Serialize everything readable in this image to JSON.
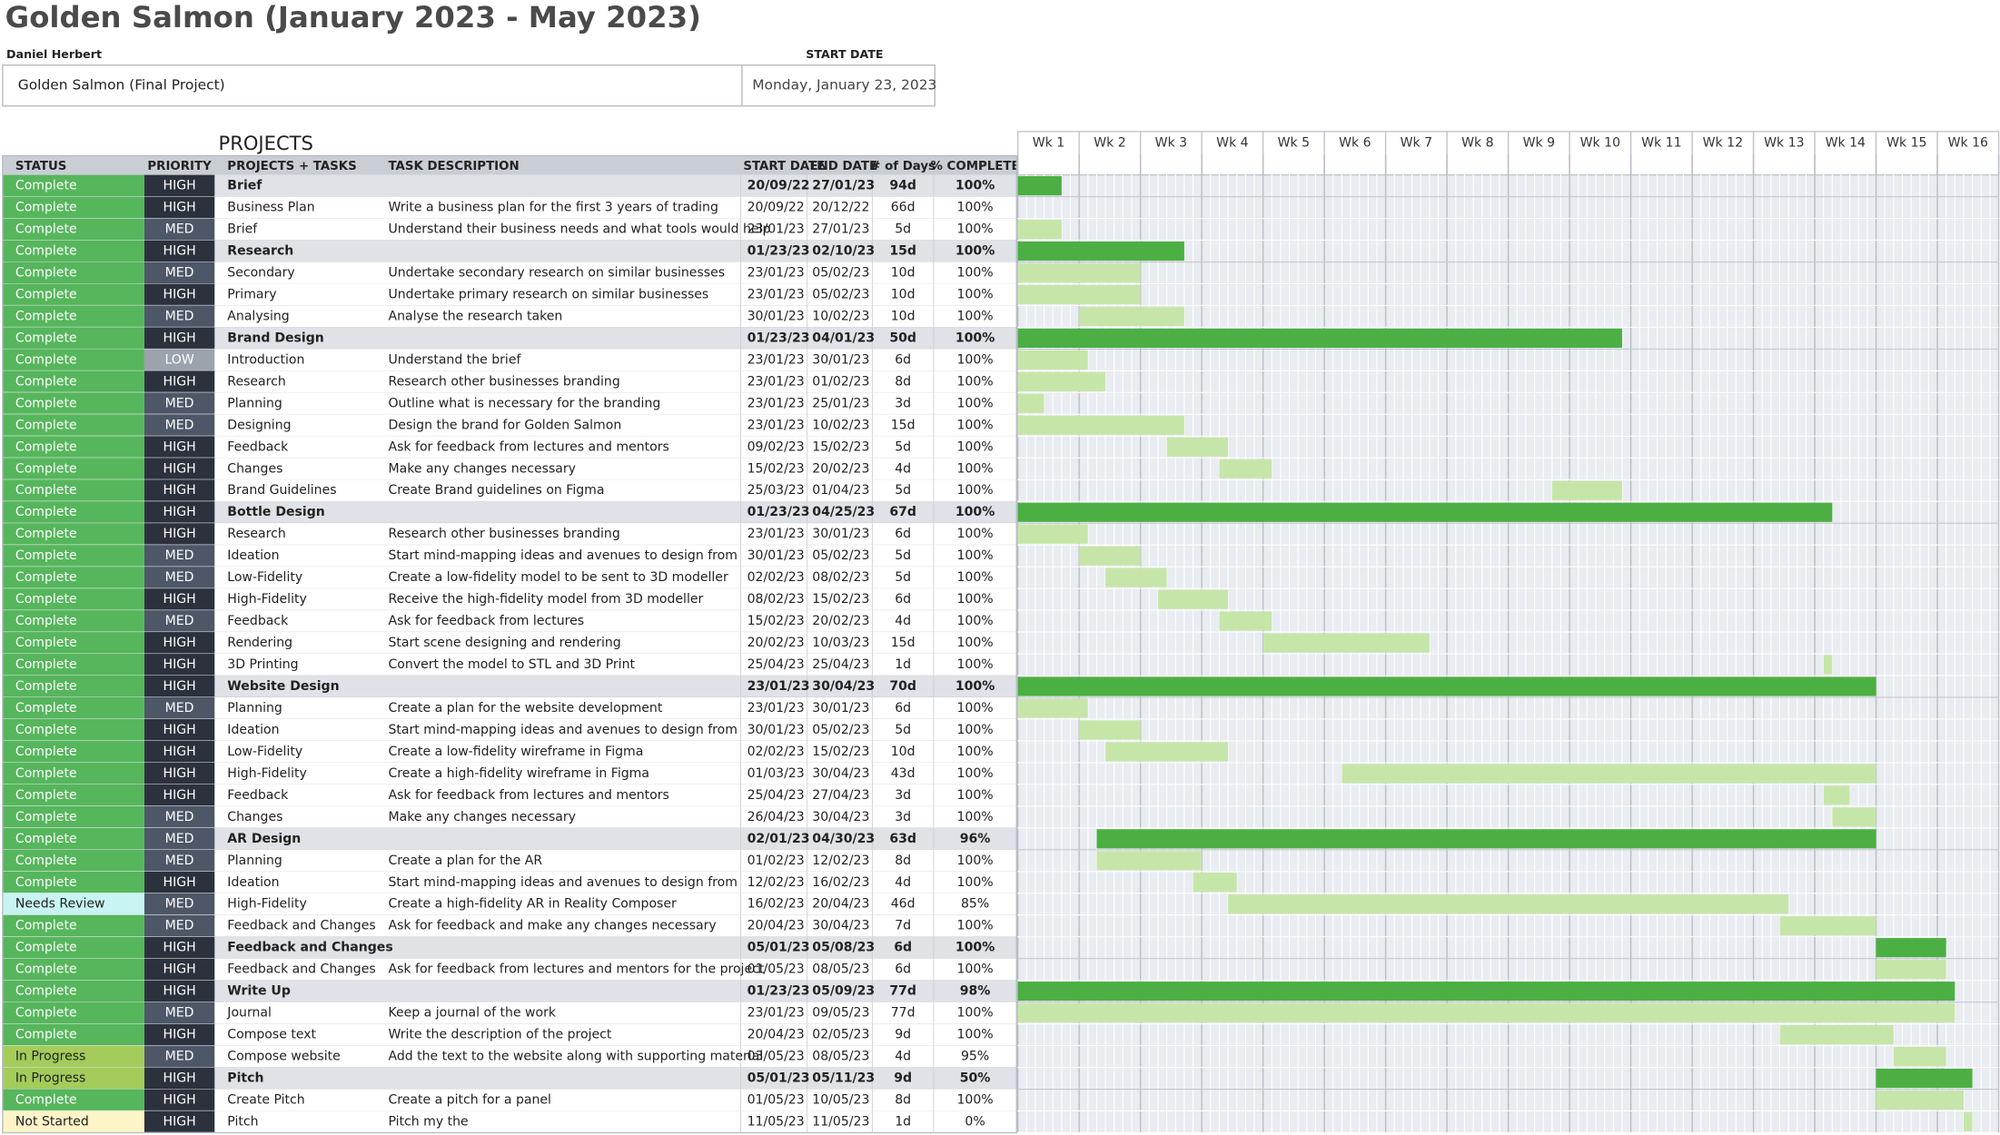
{
  "header": {
    "title": "Golden Salmon (January 2023 - May 2023)",
    "owner": "Daniel Herbert",
    "start_date_label": "START DATE",
    "project_name": "Golden Salmon (Final Project)",
    "start_date": "Monday, January 23, 2023"
  },
  "table": {
    "section_label": "PROJECTS",
    "columns": [
      "STATUS",
      "PRIORITY",
      "PROJECTS + TASKS",
      "TASK DESCRIPTION",
      "START DATE",
      "END DATE",
      "# of Days",
      "% COMPLETE"
    ],
    "weeks": [
      "Wk 1",
      "Wk 2",
      "Wk 3",
      "Wk 4",
      "Wk 5",
      "Wk 6",
      "Wk 7",
      "Wk 8",
      "Wk 9",
      "Wk 10",
      "Wk 11",
      "Wk 12",
      "Wk 13",
      "Wk 14",
      "Wk 15",
      "Wk 16"
    ],
    "rows": [
      {
        "status": "Complete",
        "priority": "HIGH",
        "task": "Brief",
        "summary": true,
        "start": "20/09/22",
        "end": "27/01/23",
        "days": "94d",
        "complete": "100%"
      },
      {
        "status": "Complete",
        "priority": "HIGH",
        "task": "Business Plan",
        "description": "Write a business plan for the first 3 years of trading",
        "start": "20/09/22",
        "end": "20/12/22",
        "days": "66d",
        "complete": "100%"
      },
      {
        "status": "Complete",
        "priority": "MED",
        "task": "Brief",
        "description": "Understand their business needs and what tools would help",
        "start": "23/01/23",
        "end": "27/01/23",
        "days": "5d",
        "complete": "100%"
      },
      {
        "status": "Complete",
        "priority": "HIGH",
        "task": "Research",
        "summary": true,
        "start": "01/23/23",
        "end": "02/10/23",
        "days": "15d",
        "complete": "100%"
      },
      {
        "status": "Complete",
        "priority": "MED",
        "task": "Secondary",
        "description": "Undertake secondary research on similar businesses",
        "start": "23/01/23",
        "end": "05/02/23",
        "days": "10d",
        "complete": "100%"
      },
      {
        "status": "Complete",
        "priority": "HIGH",
        "task": "Primary",
        "description": "Undertake primary research on similar businesses",
        "start": "23/01/23",
        "end": "05/02/23",
        "days": "10d",
        "complete": "100%"
      },
      {
        "status": "Complete",
        "priority": "MED",
        "task": "Analysing",
        "description": "Analyse the research taken",
        "start": "30/01/23",
        "end": "10/02/23",
        "days": "10d",
        "complete": "100%"
      },
      {
        "status": "Complete",
        "priority": "HIGH",
        "task": "Brand Design",
        "summary": true,
        "start": "01/23/23",
        "end": "04/01/23",
        "days": "50d",
        "complete": "100%"
      },
      {
        "status": "Complete",
        "priority": "LOW",
        "task": "Introduction",
        "description": "Understand the brief",
        "start": "23/01/23",
        "end": "30/01/23",
        "days": "6d",
        "complete": "100%"
      },
      {
        "status": "Complete",
        "priority": "HIGH",
        "task": "Research",
        "description": "Research other businesses branding",
        "start": "23/01/23",
        "end": "01/02/23",
        "days": "8d",
        "complete": "100%"
      },
      {
        "status": "Complete",
        "priority": "MED",
        "task": "Planning",
        "description": "Outline what is necessary for the branding",
        "start": "23/01/23",
        "end": "25/01/23",
        "days": "3d",
        "complete": "100%"
      },
      {
        "status": "Complete",
        "priority": "MED",
        "task": "Designing",
        "description": "Design the brand for Golden Salmon",
        "start": "23/01/23",
        "end": "10/02/23",
        "days": "15d",
        "complete": "100%"
      },
      {
        "status": "Complete",
        "priority": "HIGH",
        "task": "Feedback",
        "description": "Ask for feedback from lectures and mentors",
        "start": "09/02/23",
        "end": "15/02/23",
        "days": "5d",
        "complete": "100%"
      },
      {
        "status": "Complete",
        "priority": "HIGH",
        "task": "Changes",
        "description": "Make any changes necessary",
        "start": "15/02/23",
        "end": "20/02/23",
        "days": "4d",
        "complete": "100%"
      },
      {
        "status": "Complete",
        "priority": "HIGH",
        "task": "Brand Guidelines",
        "description": "Create Brand guidelines on Figma",
        "start": "25/03/23",
        "end": "01/04/23",
        "days": "5d",
        "complete": "100%"
      },
      {
        "status": "Complete",
        "priority": "HIGH",
        "task": "Bottle Design",
        "summary": true,
        "start": "01/23/23",
        "end": "04/25/23",
        "days": "67d",
        "complete": "100%"
      },
      {
        "status": "Complete",
        "priority": "HIGH",
        "task": "Research",
        "description": "Research other businesses branding",
        "start": "23/01/23",
        "end": "30/01/23",
        "days": "6d",
        "complete": "100%"
      },
      {
        "status": "Complete",
        "priority": "MED",
        "task": "Ideation",
        "description": "Start mind-mapping ideas and avenues to design from",
        "start": "30/01/23",
        "end": "05/02/23",
        "days": "5d",
        "complete": "100%"
      },
      {
        "status": "Complete",
        "priority": "MED",
        "task": "Low-Fidelity",
        "description": "Create a low-fidelity model to be sent to 3D modeller",
        "start": "02/02/23",
        "end": "08/02/23",
        "days": "5d",
        "complete": "100%"
      },
      {
        "status": "Complete",
        "priority": "HIGH",
        "task": "High-Fidelity",
        "description": "Receive the high-fidelity model from 3D modeller",
        "start": "08/02/23",
        "end": "15/02/23",
        "days": "6d",
        "complete": "100%"
      },
      {
        "status": "Complete",
        "priority": "MED",
        "task": "Feedback",
        "description": "Ask for feedback from lectures",
        "start": "15/02/23",
        "end": "20/02/23",
        "days": "4d",
        "complete": "100%"
      },
      {
        "status": "Complete",
        "priority": "HIGH",
        "task": "Rendering",
        "description": "Start scene designing and rendering",
        "start": "20/02/23",
        "end": "10/03/23",
        "days": "15d",
        "complete": "100%"
      },
      {
        "status": "Complete",
        "priority": "HIGH",
        "task": "3D Printing",
        "description": "Convert the model to STL and 3D Print",
        "start": "25/04/23",
        "end": "25/04/23",
        "days": "1d",
        "complete": "100%"
      },
      {
        "status": "Complete",
        "priority": "HIGH",
        "task": "Website Design",
        "summary": true,
        "start": "23/01/23",
        "end": "30/04/23",
        "days": "70d",
        "complete": "100%"
      },
      {
        "status": "Complete",
        "priority": "MED",
        "task": "Planning",
        "description": "Create a plan for the website development",
        "start": "23/01/23",
        "end": "30/01/23",
        "days": "6d",
        "complete": "100%"
      },
      {
        "status": "Complete",
        "priority": "HIGH",
        "task": "Ideation",
        "description": "Start mind-mapping ideas and avenues to design from",
        "start": "30/01/23",
        "end": "05/02/23",
        "days": "5d",
        "complete": "100%"
      },
      {
        "status": "Complete",
        "priority": "HIGH",
        "task": "Low-Fidelity",
        "description": "Create a low-fidelity wireframe in Figma",
        "start": "02/02/23",
        "end": "15/02/23",
        "days": "10d",
        "complete": "100%"
      },
      {
        "status": "Complete",
        "priority": "HIGH",
        "task": "High-Fidelity",
        "description": "Create a high-fidelity wireframe in Figma",
        "start": "01/03/23",
        "end": "30/04/23",
        "days": "43d",
        "complete": "100%"
      },
      {
        "status": "Complete",
        "priority": "HIGH",
        "task": "Feedback",
        "description": "Ask for feedback from lectures and mentors",
        "start": "25/04/23",
        "end": "27/04/23",
        "days": "3d",
        "complete": "100%"
      },
      {
        "status": "Complete",
        "priority": "MED",
        "task": "Changes",
        "description": "Make any changes necessary",
        "start": "26/04/23",
        "end": "30/04/23",
        "days": "3d",
        "complete": "100%"
      },
      {
        "status": "Complete",
        "priority": "MED",
        "task": "AR Design",
        "summary": true,
        "start": "02/01/23",
        "end": "04/30/23",
        "days": "63d",
        "complete": "96%"
      },
      {
        "status": "Complete",
        "priority": "MED",
        "task": "Planning",
        "description": "Create a plan for the AR",
        "start": "01/02/23",
        "end": "12/02/23",
        "days": "8d",
        "complete": "100%"
      },
      {
        "status": "Complete",
        "priority": "HIGH",
        "task": "Ideation",
        "description": "Start mind-mapping ideas and avenues to design from",
        "start": "12/02/23",
        "end": "16/02/23",
        "days": "4d",
        "complete": "100%"
      },
      {
        "status": "Needs Review",
        "priority": "MED",
        "task": "High-Fidelity",
        "description": "Create a high-fidelity AR in Reality Composer",
        "start": "16/02/23",
        "end": "20/04/23",
        "days": "46d",
        "complete": "85%"
      },
      {
        "status": "Complete",
        "priority": "MED",
        "task": "Feedback and Changes",
        "description": "Ask for feedback and make any changes necessary",
        "start": "20/04/23",
        "end": "30/04/23",
        "days": "7d",
        "complete": "100%"
      },
      {
        "status": "Complete",
        "priority": "HIGH",
        "task": "Feedback and Changes",
        "summary": true,
        "start": "05/01/23",
        "end": "05/08/23",
        "days": "6d",
        "complete": "100%"
      },
      {
        "status": "Complete",
        "priority": "HIGH",
        "task": "Feedback and Changes",
        "description": "Ask for feedback from lectures and mentors for the project",
        "start": "01/05/23",
        "end": "08/05/23",
        "days": "6d",
        "complete": "100%"
      },
      {
        "status": "Complete",
        "priority": "HIGH",
        "task": "Write Up",
        "summary": true,
        "start": "01/23/23",
        "end": "05/09/23",
        "days": "77d",
        "complete": "98%"
      },
      {
        "status": "Complete",
        "priority": "MED",
        "task": "Journal",
        "description": "Keep a journal of the work",
        "start": "23/01/23",
        "end": "09/05/23",
        "days": "77d",
        "complete": "100%"
      },
      {
        "status": "Complete",
        "priority": "HIGH",
        "task": "Compose text",
        "description": "Write the description of the project",
        "start": "20/04/23",
        "end": "02/05/23",
        "days": "9d",
        "complete": "100%"
      },
      {
        "status": "In Progress",
        "priority": "MED",
        "task": "Compose website",
        "description": "Add the text to the website along with supporting material",
        "start": "03/05/23",
        "end": "08/05/23",
        "days": "4d",
        "complete": "95%"
      },
      {
        "status": "In Progress",
        "priority": "HIGH",
        "task": "Pitch",
        "summary": true,
        "start": "05/01/23",
        "end": "05/11/23",
        "days": "9d",
        "complete": "50%"
      },
      {
        "status": "Complete",
        "priority": "HIGH",
        "task": "Create Pitch",
        "description": "Create a pitch for a panel",
        "start": "01/05/23",
        "end": "10/05/23",
        "days": "8d",
        "complete": "100%"
      },
      {
        "status": "Not Started",
        "priority": "HIGH",
        "task": "Pitch",
        "description": "Pitch my the",
        "start": "11/05/23",
        "end": "11/05/23",
        "days": "1d",
        "complete": "0%"
      }
    ]
  }
}
